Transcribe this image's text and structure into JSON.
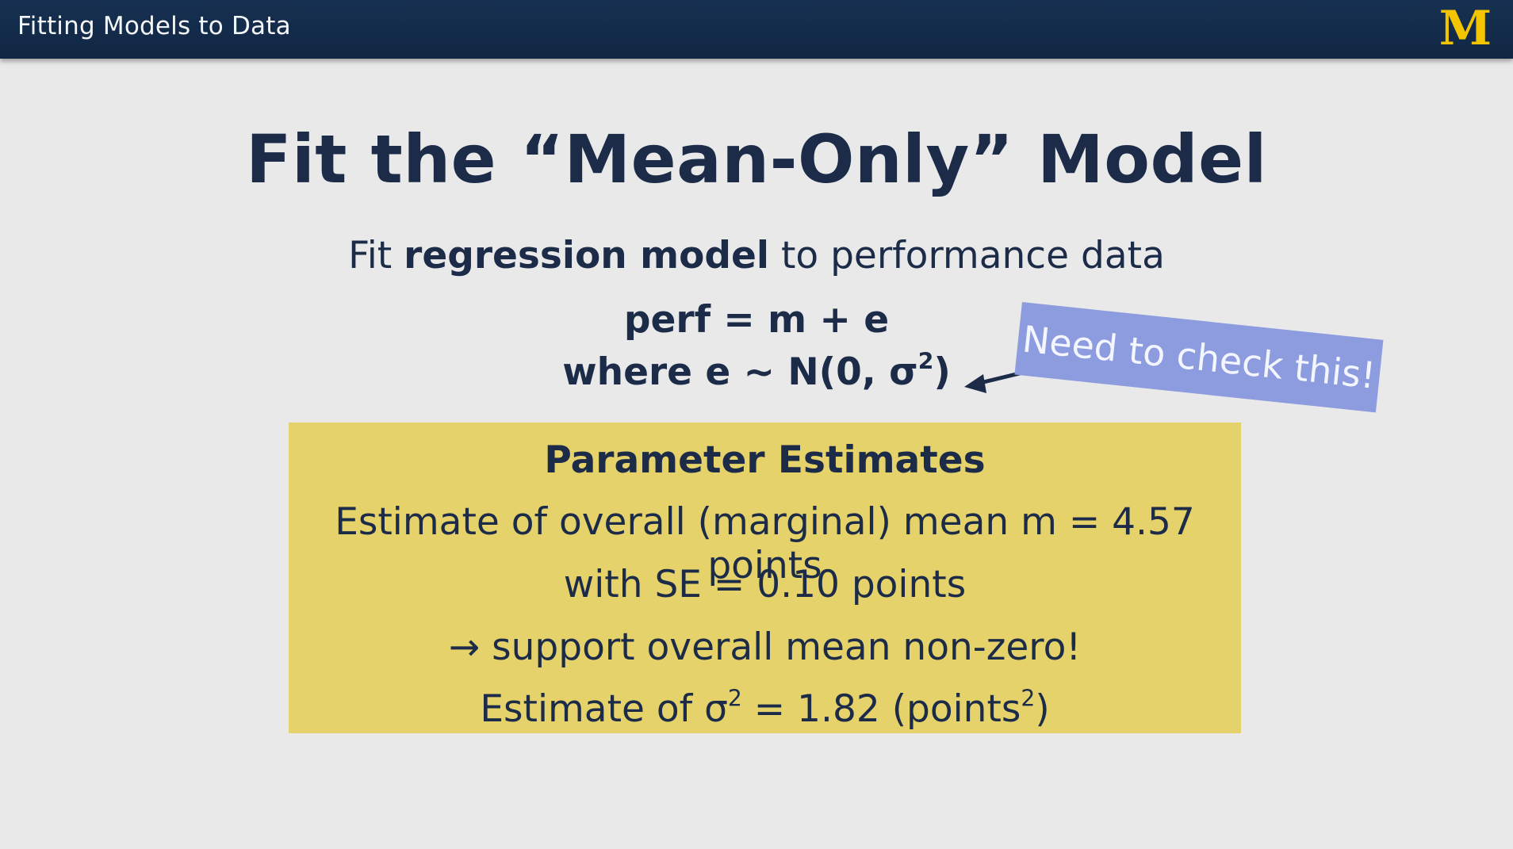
{
  "header": {
    "title": "Fitting Models to Data",
    "logo_letter": "M",
    "logo_color": "#f2c500"
  },
  "slide": {
    "title": "Fit the “Mean-Only” Model",
    "subtitle_pre": "Fit ",
    "subtitle_bold": "regression model",
    "subtitle_post": " to performance data",
    "equation_line1": "perf = m + e",
    "equation_line2_pre": "where e ~ N(0, σ",
    "equation_line2_sup": "2",
    "equation_line2_post": ")",
    "annotation": "Need to check this!",
    "annotation_color": "#8d9cdf"
  },
  "estimates": {
    "heading": "Parameter Estimates",
    "line1": "Estimate of overall (marginal) mean m = 4.57 points",
    "line2": "with SE = 0.10 points",
    "line3": "→ support overall mean non-zero!",
    "line4_pre": "Estimate of σ",
    "line4_sup1": "2",
    "line4_mid": " = 1.82 (points",
    "line4_sup2": "2",
    "line4_post": ")",
    "box_color": "#e5d26b"
  }
}
